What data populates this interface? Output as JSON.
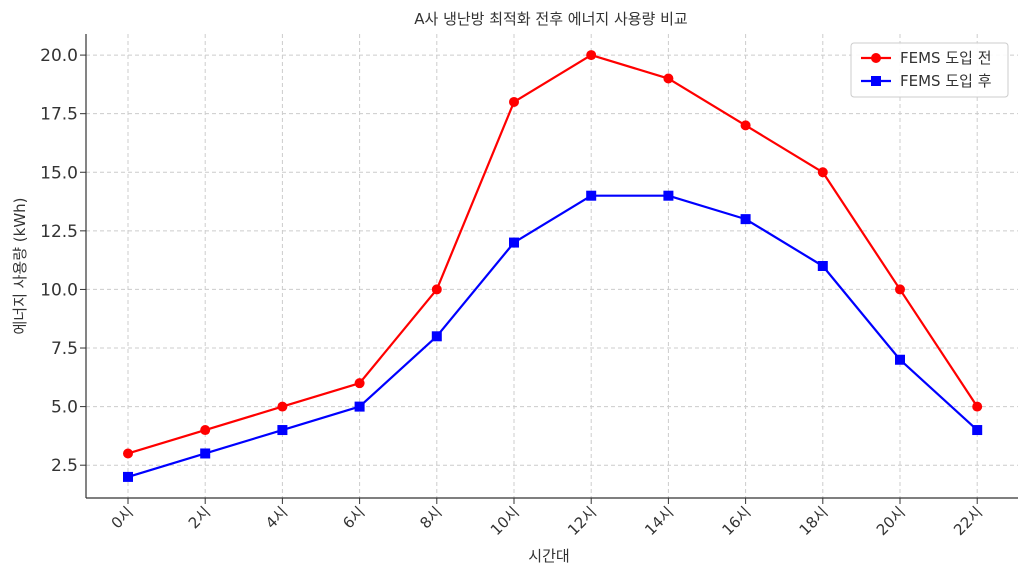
{
  "chart_data": {
    "type": "line",
    "title": "A사 냉난방 최적화 전후 에너지 사용량 비교",
    "xlabel": "시간대",
    "ylabel": "에너지 사용량 (kWh)",
    "categories": [
      "0시",
      "2시",
      "4시",
      "6시",
      "8시",
      "10시",
      "12시",
      "14시",
      "16시",
      "18시",
      "20시",
      "22시"
    ],
    "yticks": [
      "2.5",
      "5.0",
      "7.5",
      "10.0",
      "12.5",
      "15.0",
      "17.5",
      "20.0"
    ],
    "ylim": [
      1.1,
      20.9
    ],
    "grid": true,
    "legend_position": "top-right",
    "series": [
      {
        "name": "FEMS 도입 전",
        "color": "#ff0000",
        "marker": "circle",
        "values": [
          3,
          4,
          5,
          6,
          10,
          18,
          20,
          19,
          17,
          15,
          10,
          5
        ]
      },
      {
        "name": "FEMS 도입 후",
        "color": "#0000ff",
        "marker": "square",
        "values": [
          2,
          3,
          4,
          5,
          8,
          12,
          14,
          14,
          13,
          11,
          7,
          4
        ]
      }
    ]
  }
}
